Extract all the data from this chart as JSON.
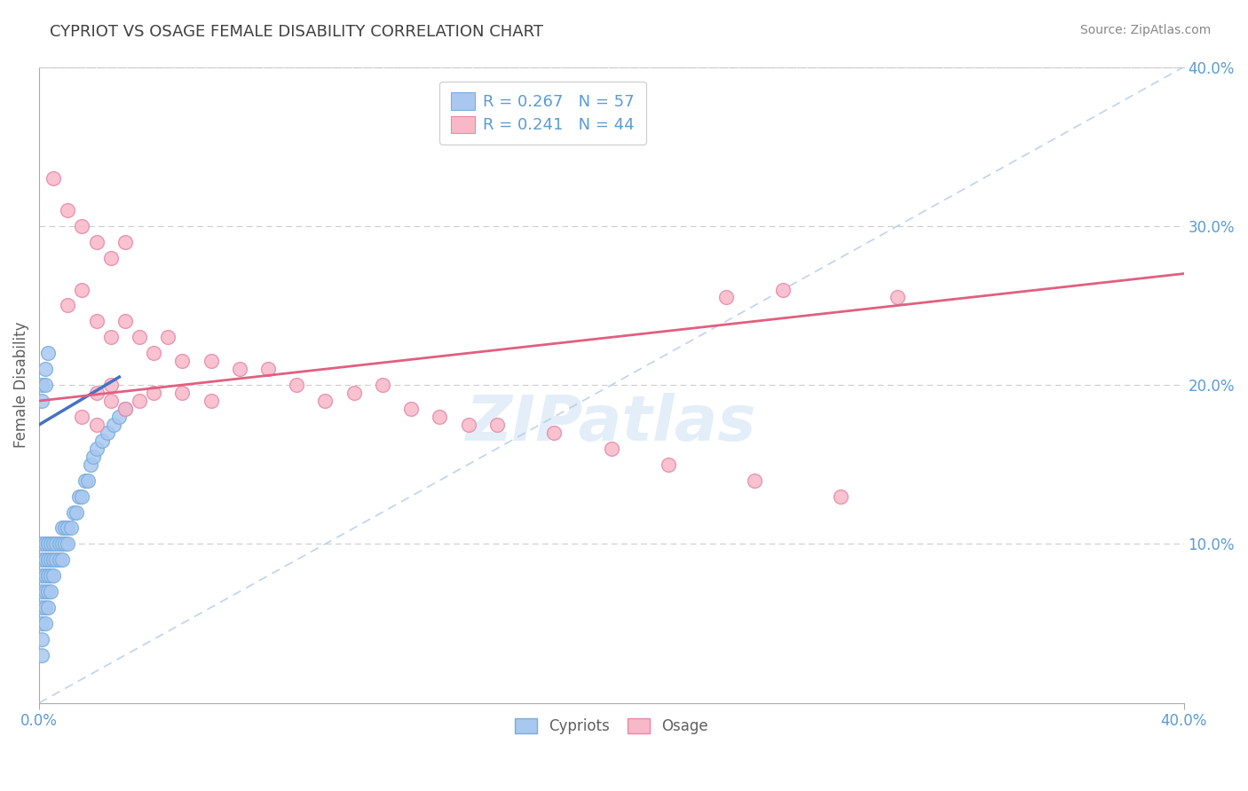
{
  "title": "CYPRIOT VS OSAGE FEMALE DISABILITY CORRELATION CHART",
  "source": "Source: ZipAtlas.com",
  "ylabel": "Female Disability",
  "watermark": "ZIPatlas",
  "xlim": [
    0.0,
    0.4
  ],
  "ylim": [
    0.0,
    0.4
  ],
  "cypriot_color": "#a8c8f0",
  "cypriot_edge": "#7aaedd",
  "osage_color": "#f8b8c8",
  "osage_edge": "#e888a8",
  "cypriot_line_color": "#4472c4",
  "osage_line_color": "#e06080",
  "cypriot_R": 0.267,
  "cypriot_N": 57,
  "osage_R": 0.241,
  "osage_N": 44,
  "legend_label_cypriots": "Cypriots",
  "legend_label_osage": "Osage",
  "cypriot_x": [
    0.001,
    0.001,
    0.001,
    0.001,
    0.001,
    0.001,
    0.001,
    0.001,
    0.002,
    0.002,
    0.002,
    0.002,
    0.002,
    0.002,
    0.003,
    0.003,
    0.003,
    0.003,
    0.003,
    0.004,
    0.004,
    0.004,
    0.004,
    0.005,
    0.005,
    0.005,
    0.006,
    0.006,
    0.007,
    0.007,
    0.008,
    0.008,
    0.008,
    0.009,
    0.009,
    0.01,
    0.01,
    0.011,
    0.012,
    0.013,
    0.014,
    0.015,
    0.016,
    0.017,
    0.018,
    0.019,
    0.02,
    0.022,
    0.024,
    0.026,
    0.028,
    0.03,
    0.001,
    0.001,
    0.002,
    0.002,
    0.003
  ],
  "cypriot_y": [
    0.03,
    0.04,
    0.05,
    0.06,
    0.07,
    0.08,
    0.09,
    0.1,
    0.05,
    0.06,
    0.07,
    0.08,
    0.09,
    0.1,
    0.06,
    0.07,
    0.08,
    0.09,
    0.1,
    0.07,
    0.08,
    0.09,
    0.1,
    0.08,
    0.09,
    0.1,
    0.09,
    0.1,
    0.09,
    0.1,
    0.09,
    0.1,
    0.11,
    0.1,
    0.11,
    0.1,
    0.11,
    0.11,
    0.12,
    0.12,
    0.13,
    0.13,
    0.14,
    0.14,
    0.15,
    0.155,
    0.16,
    0.165,
    0.17,
    0.175,
    0.18,
    0.185,
    0.19,
    0.2,
    0.2,
    0.21,
    0.22
  ],
  "osage_x": [
    0.005,
    0.01,
    0.015,
    0.02,
    0.025,
    0.03,
    0.01,
    0.015,
    0.02,
    0.025,
    0.03,
    0.035,
    0.04,
    0.045,
    0.05,
    0.06,
    0.07,
    0.08,
    0.09,
    0.1,
    0.11,
    0.12,
    0.13,
    0.14,
    0.15,
    0.16,
    0.18,
    0.2,
    0.22,
    0.25,
    0.28,
    0.02,
    0.025,
    0.03,
    0.035,
    0.04,
    0.015,
    0.02,
    0.025,
    0.05,
    0.06,
    0.24,
    0.26,
    0.3
  ],
  "osage_y": [
    0.33,
    0.31,
    0.3,
    0.29,
    0.28,
    0.29,
    0.25,
    0.26,
    0.24,
    0.23,
    0.24,
    0.23,
    0.22,
    0.23,
    0.215,
    0.215,
    0.21,
    0.21,
    0.2,
    0.19,
    0.195,
    0.2,
    0.185,
    0.18,
    0.175,
    0.175,
    0.17,
    0.16,
    0.15,
    0.14,
    0.13,
    0.195,
    0.2,
    0.185,
    0.19,
    0.195,
    0.18,
    0.175,
    0.19,
    0.195,
    0.19,
    0.255,
    0.26,
    0.255
  ],
  "grid_color": "#cccccc",
  "background_color": "#ffffff",
  "title_color": "#404040",
  "axis_color": "#606060",
  "tick_color": "#5b9bd5",
  "legend_text_color": "#5b9bd5"
}
